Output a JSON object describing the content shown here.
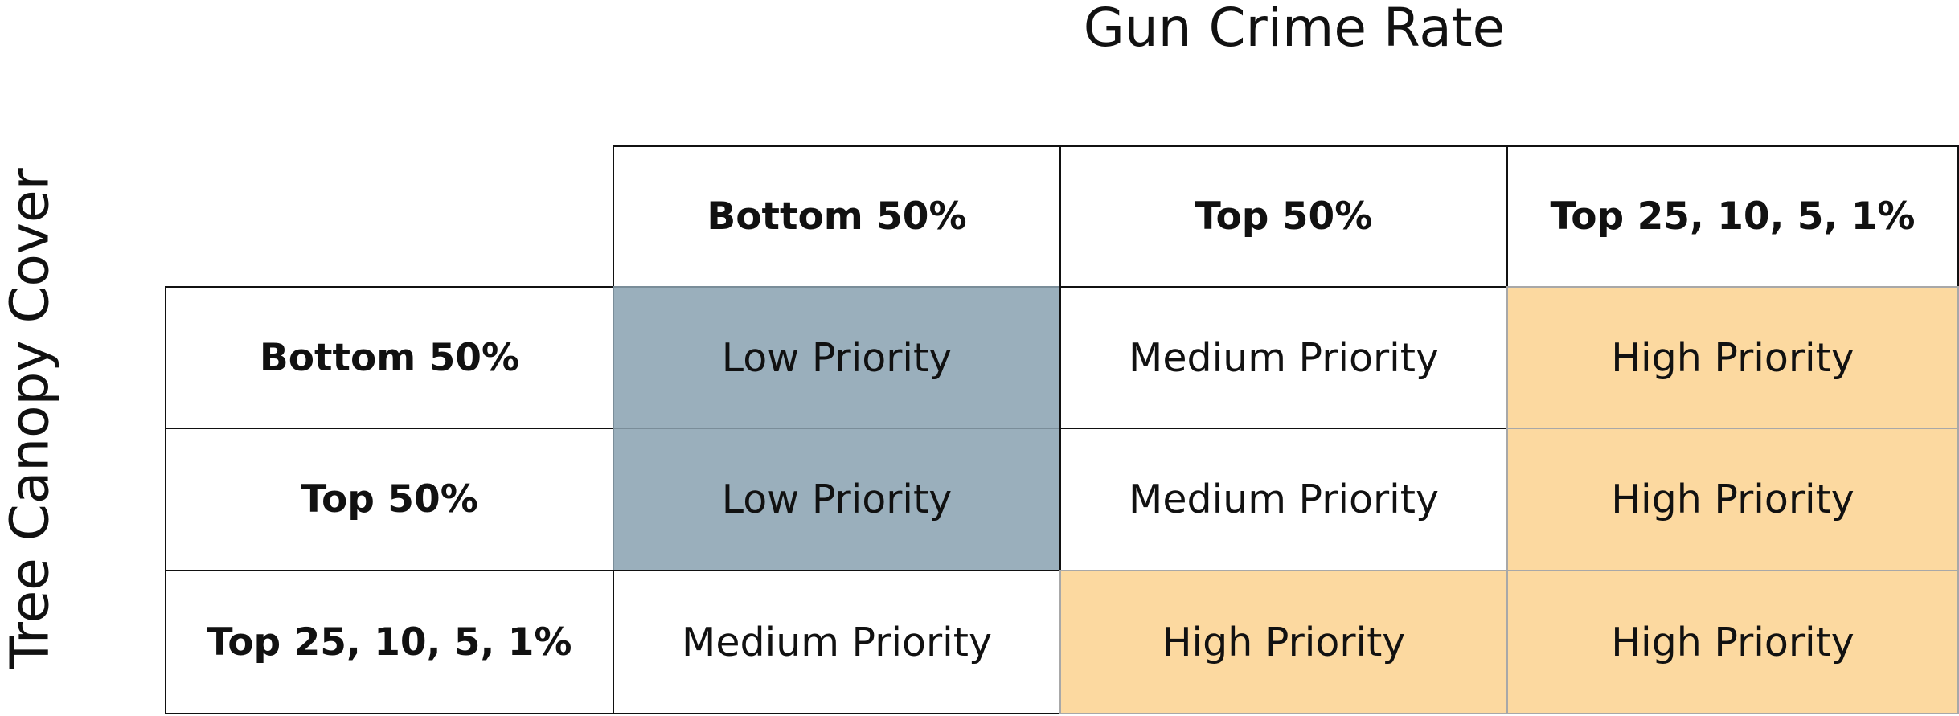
{
  "column_title": "Gun Crime Rate",
  "row_title": "Tree Canopy Cover",
  "columns": [
    "Bottom 50%",
    "Top 50%",
    "Top 25, 10, 5, 1%"
  ],
  "rows": [
    {
      "label": "Bottom 50%",
      "cells": [
        "Low Priority",
        "Medium Priority",
        "High Priority"
      ]
    },
    {
      "label": "Top 50%",
      "cells": [
        "Low Priority",
        "Medium Priority",
        "High Priority"
      ]
    },
    {
      "label": "Top 25, 10, 5, 1%",
      "cells": [
        "Medium Priority",
        "High Priority",
        "High Priority"
      ]
    }
  ],
  "colors": {
    "low_priority": "#9aafbc",
    "medium_priority": "#ffffff",
    "high_priority": "#fcd9a0"
  }
}
